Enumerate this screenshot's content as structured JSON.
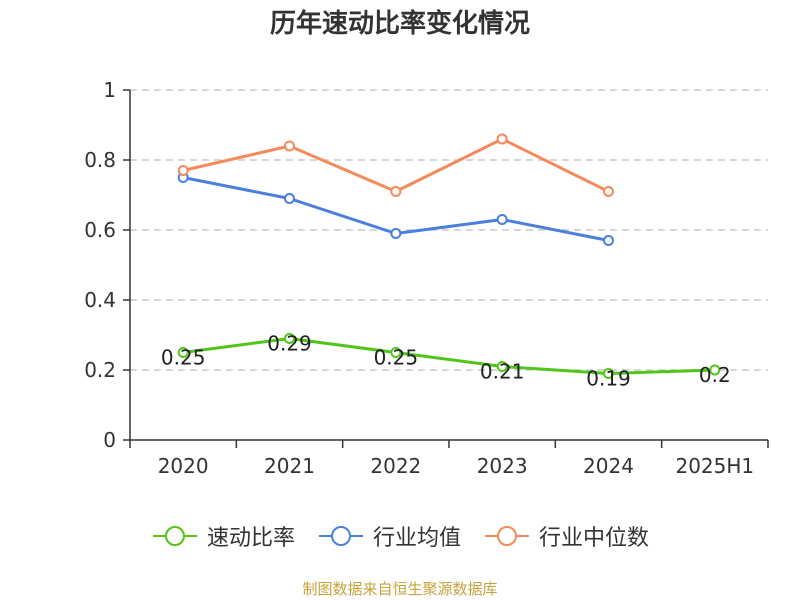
{
  "chart_data": {
    "type": "line",
    "title": "历年速动比率变化情况",
    "categories": [
      "2020",
      "2021",
      "2022",
      "2023",
      "2024",
      "2025H1"
    ],
    "ylim": [
      0,
      1
    ],
    "yticks": [
      0,
      0.2,
      0.4,
      0.6,
      0.8,
      1
    ],
    "ytick_labels": [
      "0",
      "0.2",
      "0.4",
      "0.6",
      "0.8",
      "1"
    ],
    "grid": true,
    "legend_position": "bottom",
    "series": [
      {
        "name": "速动比率",
        "color": "#52c41a",
        "values": [
          0.25,
          0.29,
          0.25,
          0.21,
          0.19,
          0.2
        ],
        "labels": [
          "0.25",
          "0.29",
          "0.25",
          "0.21",
          "0.19",
          "0.2"
        ],
        "show_labels": true
      },
      {
        "name": "行业均值",
        "color": "#4a7fdb",
        "values": [
          0.75,
          0.69,
          0.59,
          0.63,
          0.57,
          null
        ],
        "show_labels": false
      },
      {
        "name": "行业中位数",
        "color": "#f5895a",
        "values": [
          0.77,
          0.84,
          0.71,
          0.86,
          0.71,
          null
        ],
        "show_labels": false
      }
    ]
  },
  "source": "制图数据来自恒生聚源数据库"
}
